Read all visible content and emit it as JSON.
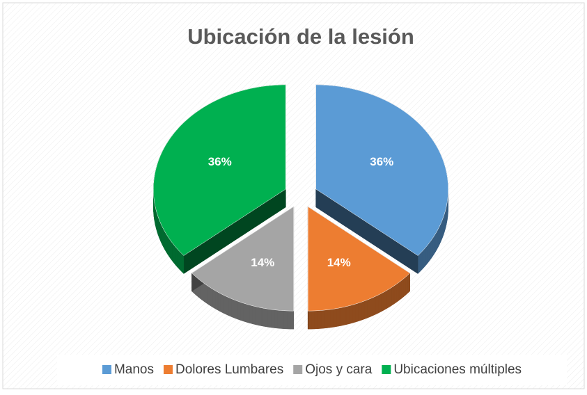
{
  "chart_data": {
    "type": "pie",
    "title": "Ubicación de la lesión",
    "categories": [
      "Manos",
      "Dolores Lumbares",
      "Ojos y cara",
      "Ubicaciones múltiples"
    ],
    "values": [
      36,
      14,
      14,
      36
    ],
    "value_labels": [
      "36%",
      "14%",
      "14%",
      "36%"
    ],
    "colors": [
      "#5b9bd5",
      "#ed7d31",
      "#a5a5a5",
      "#00b050"
    ],
    "legend": "bottom"
  }
}
